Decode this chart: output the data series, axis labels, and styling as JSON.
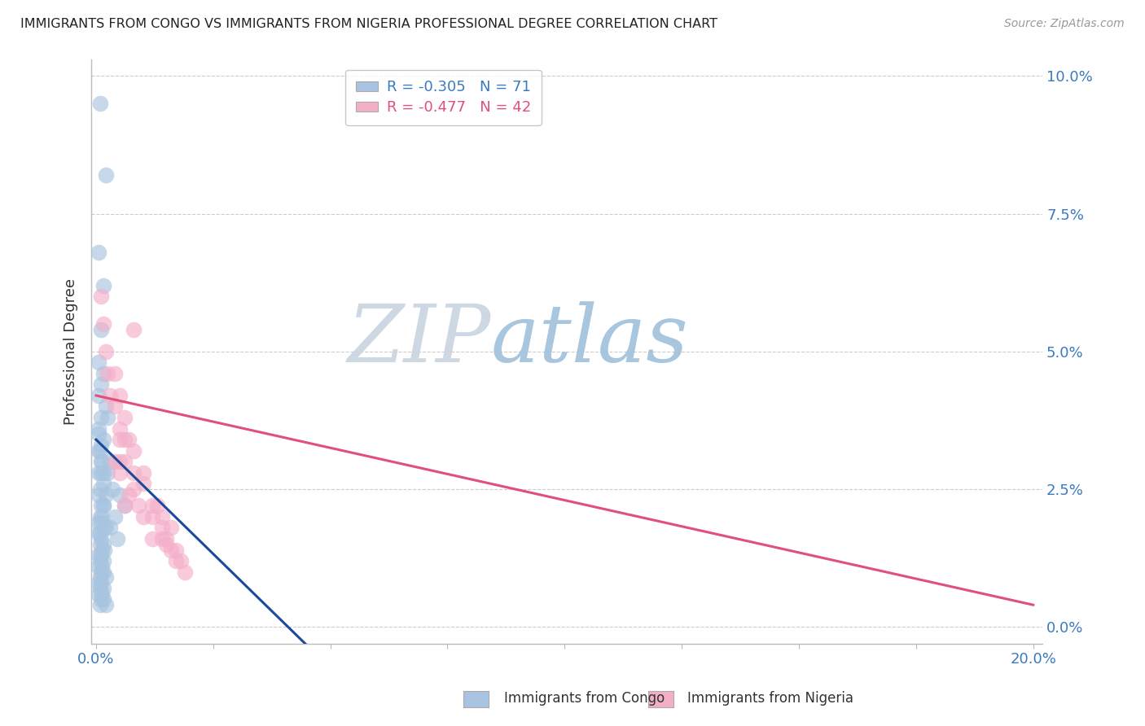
{
  "title": "IMMIGRANTS FROM CONGO VS IMMIGRANTS FROM NIGERIA PROFESSIONAL DEGREE CORRELATION CHART",
  "source": "Source: ZipAtlas.com",
  "ylabel": "Professional Degree",
  "legend_label_congo": "Immigrants from Congo",
  "legend_label_nigeria": "Immigrants from Nigeria",
  "color_congo": "#a8c4e0",
  "color_nigeria": "#f4afc8",
  "color_line_congo": "#1a4a9a",
  "color_line_nigeria": "#e0507a",
  "watermark_zip": "ZIP",
  "watermark_atlas": "atlas",
  "congo_x": [
    0.0008,
    0.002,
    0.0005,
    0.0015,
    0.001,
    0.0005,
    0.0015,
    0.001,
    0.0005,
    0.002,
    0.001,
    0.0005,
    0.0015,
    0.0008,
    0.0012,
    0.0005,
    0.001,
    0.0015,
    0.0008,
    0.002,
    0.0005,
    0.001,
    0.0015,
    0.0008,
    0.0012,
    0.0005,
    0.001,
    0.0015,
    0.002,
    0.0008,
    0.0005,
    0.001,
    0.0015,
    0.0008,
    0.0012,
    0.0018,
    0.0005,
    0.001,
    0.0015,
    0.0008,
    0.0012,
    0.0005,
    0.001,
    0.0015,
    0.0008,
    0.002,
    0.0005,
    0.001,
    0.0015,
    0.0008,
    0.0012,
    0.0005,
    0.001,
    0.0015,
    0.0008,
    0.002,
    0.003,
    0.0025,
    0.0035,
    0.0015,
    0.004,
    0.003,
    0.0005,
    0.001,
    0.0015,
    0.006,
    0.005,
    0.0005,
    0.001,
    0.0025,
    0.0045
  ],
  "congo_y": [
    0.095,
    0.082,
    0.068,
    0.062,
    0.054,
    0.048,
    0.046,
    0.044,
    0.042,
    0.04,
    0.038,
    0.036,
    0.034,
    0.032,
    0.03,
    0.028,
    0.028,
    0.026,
    0.025,
    0.024,
    0.024,
    0.022,
    0.022,
    0.02,
    0.02,
    0.019,
    0.019,
    0.018,
    0.018,
    0.017,
    0.017,
    0.016,
    0.015,
    0.015,
    0.014,
    0.014,
    0.013,
    0.013,
    0.012,
    0.012,
    0.011,
    0.011,
    0.01,
    0.01,
    0.009,
    0.009,
    0.008,
    0.008,
    0.007,
    0.007,
    0.006,
    0.006,
    0.005,
    0.005,
    0.004,
    0.004,
    0.03,
    0.028,
    0.025,
    0.022,
    0.02,
    0.018,
    0.032,
    0.03,
    0.028,
    0.022,
    0.024,
    0.035,
    0.033,
    0.038,
    0.016
  ],
  "nigeria_x": [
    0.001,
    0.0015,
    0.002,
    0.0025,
    0.003,
    0.004,
    0.005,
    0.006,
    0.008,
    0.005,
    0.004,
    0.006,
    0.008,
    0.004,
    0.006,
    0.008,
    0.01,
    0.005,
    0.007,
    0.005,
    0.008,
    0.007,
    0.009,
    0.006,
    0.005,
    0.01,
    0.012,
    0.014,
    0.015,
    0.01,
    0.012,
    0.014,
    0.016,
    0.012,
    0.014,
    0.016,
    0.018,
    0.013,
    0.017,
    0.015,
    0.017,
    0.019
  ],
  "nigeria_y": [
    0.06,
    0.055,
    0.05,
    0.046,
    0.042,
    0.046,
    0.042,
    0.038,
    0.054,
    0.036,
    0.04,
    0.034,
    0.032,
    0.03,
    0.03,
    0.028,
    0.026,
    0.034,
    0.034,
    0.028,
    0.025,
    0.024,
    0.022,
    0.022,
    0.03,
    0.02,
    0.02,
    0.018,
    0.016,
    0.028,
    0.022,
    0.02,
    0.018,
    0.016,
    0.016,
    0.014,
    0.012,
    0.022,
    0.014,
    0.015,
    0.012,
    0.01
  ],
  "congo_line_x": [
    0.0,
    0.047
  ],
  "congo_line_y": [
    0.034,
    -0.005
  ],
  "nigeria_line_x": [
    0.0,
    0.2
  ],
  "nigeria_line_y": [
    0.042,
    0.004
  ],
  "xlim": [
    -0.001,
    0.202
  ],
  "ylim": [
    -0.003,
    0.103
  ],
  "xticks": [
    0.0,
    0.025,
    0.05,
    0.075,
    0.1,
    0.125,
    0.15,
    0.175,
    0.2
  ],
  "yticks": [
    0.0,
    0.025,
    0.05,
    0.075,
    0.1
  ]
}
